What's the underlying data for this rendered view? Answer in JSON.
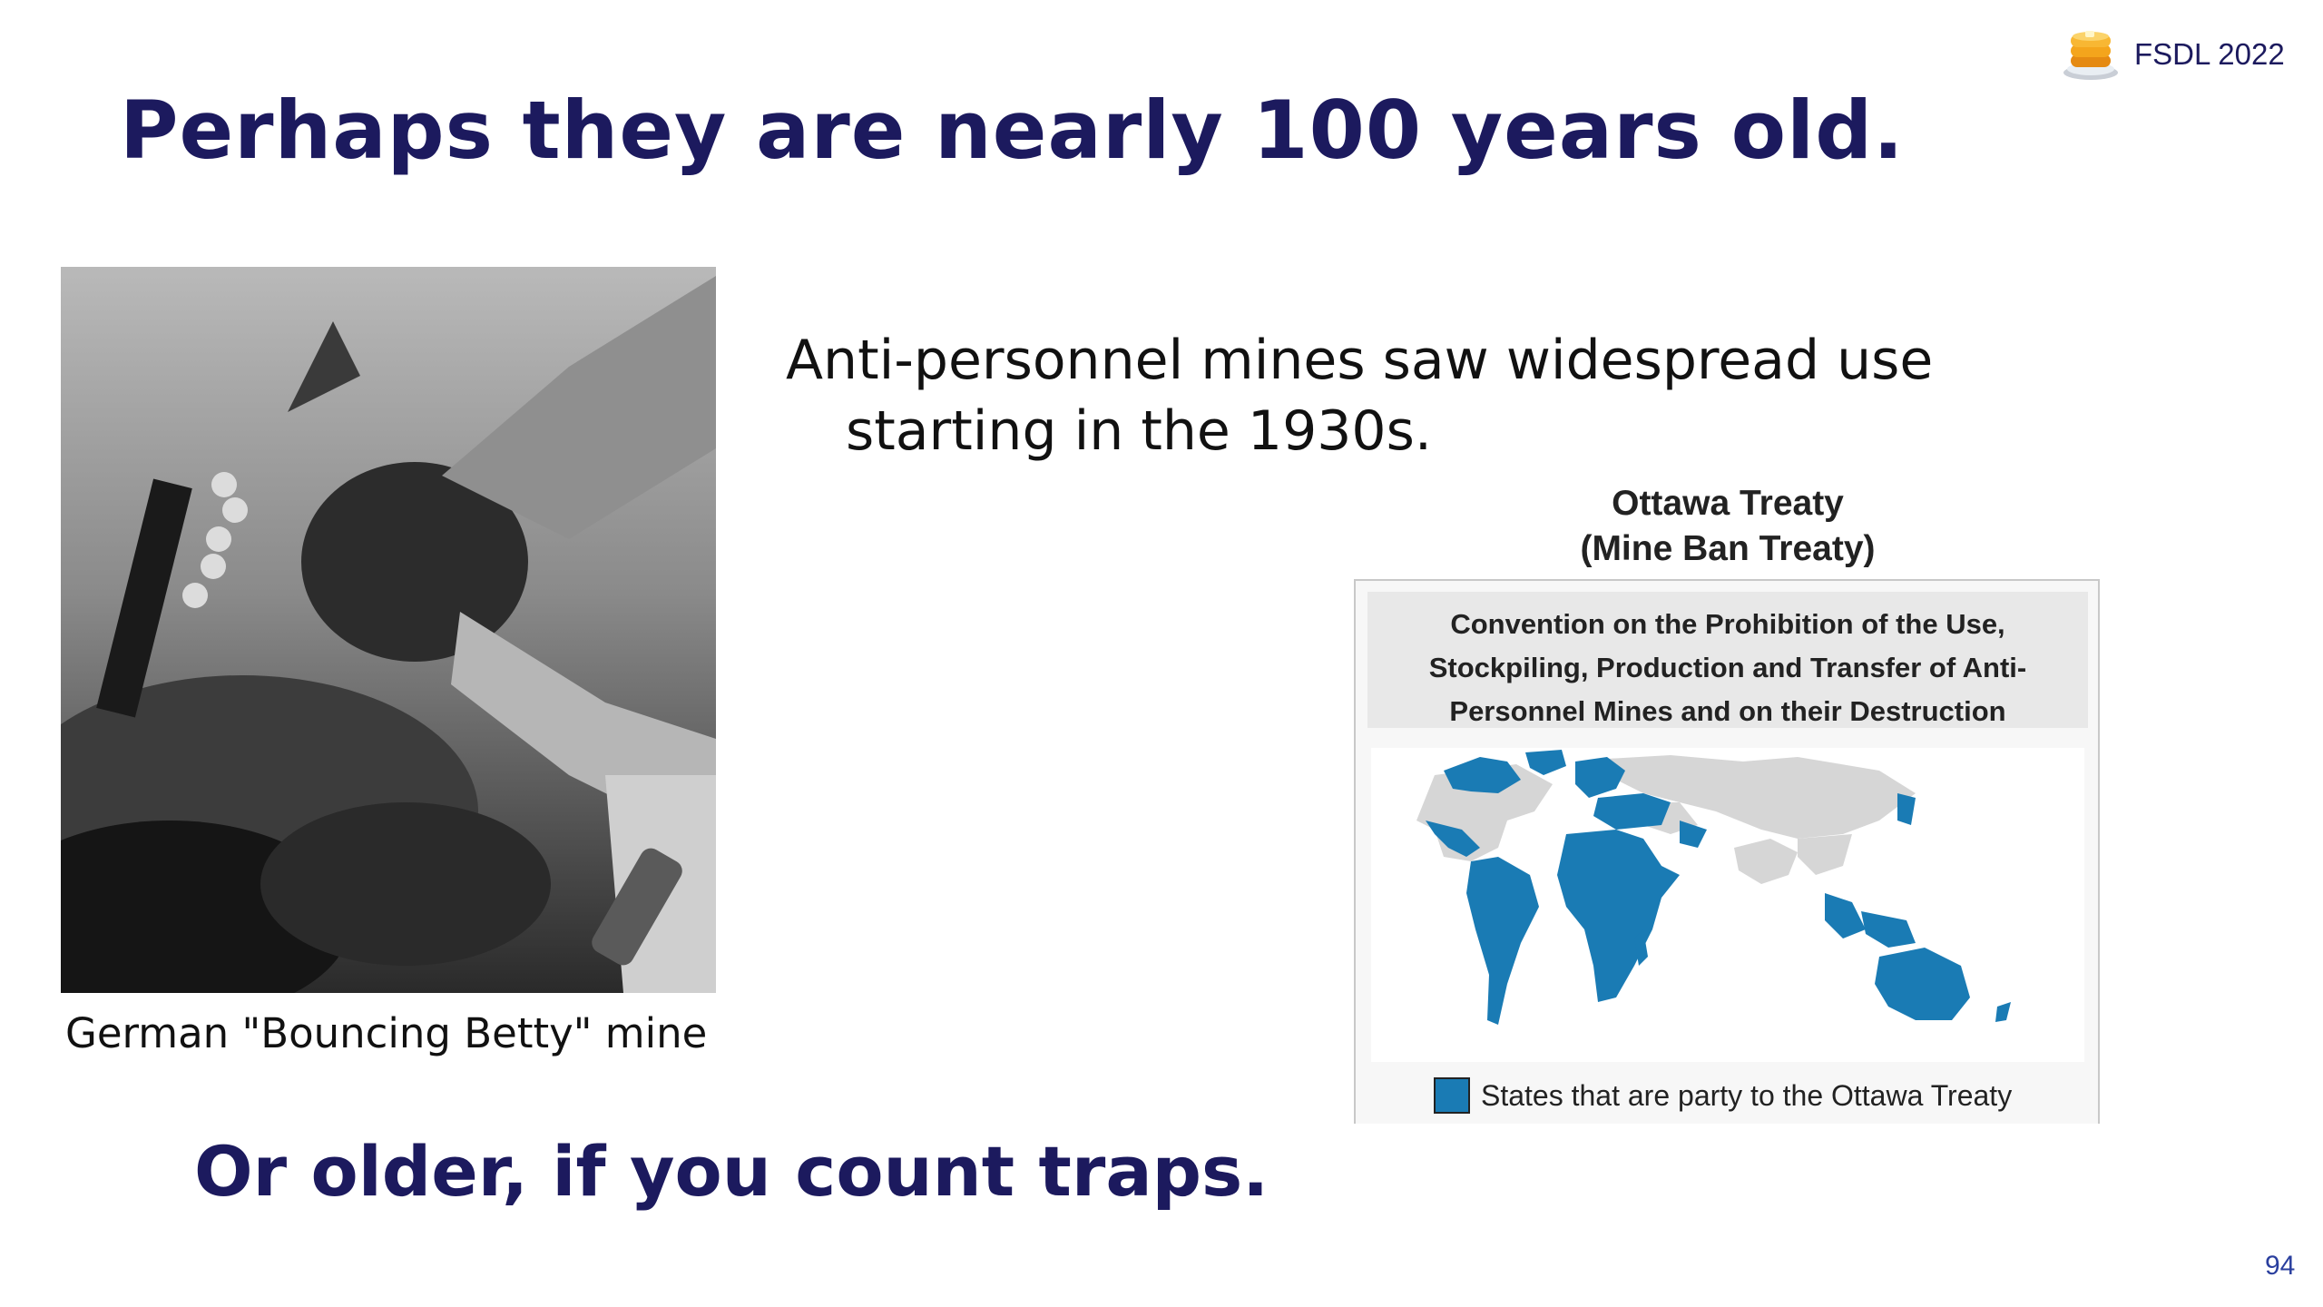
{
  "slide": {
    "title": "Perhaps they are nearly 100 years old.",
    "brand": {
      "icon": "pancake-stack-icon",
      "label": "FSDL 2022"
    },
    "photo": {
      "subject": "bouncing-betty-mine-photo",
      "caption": "German \"Bouncing Betty\" mine"
    },
    "bullet": {
      "line1": "Anti-personnel mines saw widespread use",
      "line2": "starting in the 1930s."
    },
    "figure": {
      "title_line1": "Ottawa Treaty",
      "title_line2": "(Mine Ban Treaty)",
      "convention_line1": "Convention on the Prohibition of the Use,",
      "convention_line2": "Stockpiling, Production and Transfer of Anti-",
      "convention_line3": "Personnel Mines and on their Destruction",
      "legend_label": "States that are party to the Ottawa Treaty",
      "colors": {
        "party": "#1a7bb4",
        "non_party": "#d6d6d6"
      }
    },
    "closing": "Or older, if you count traps.",
    "page_number": "94"
  }
}
